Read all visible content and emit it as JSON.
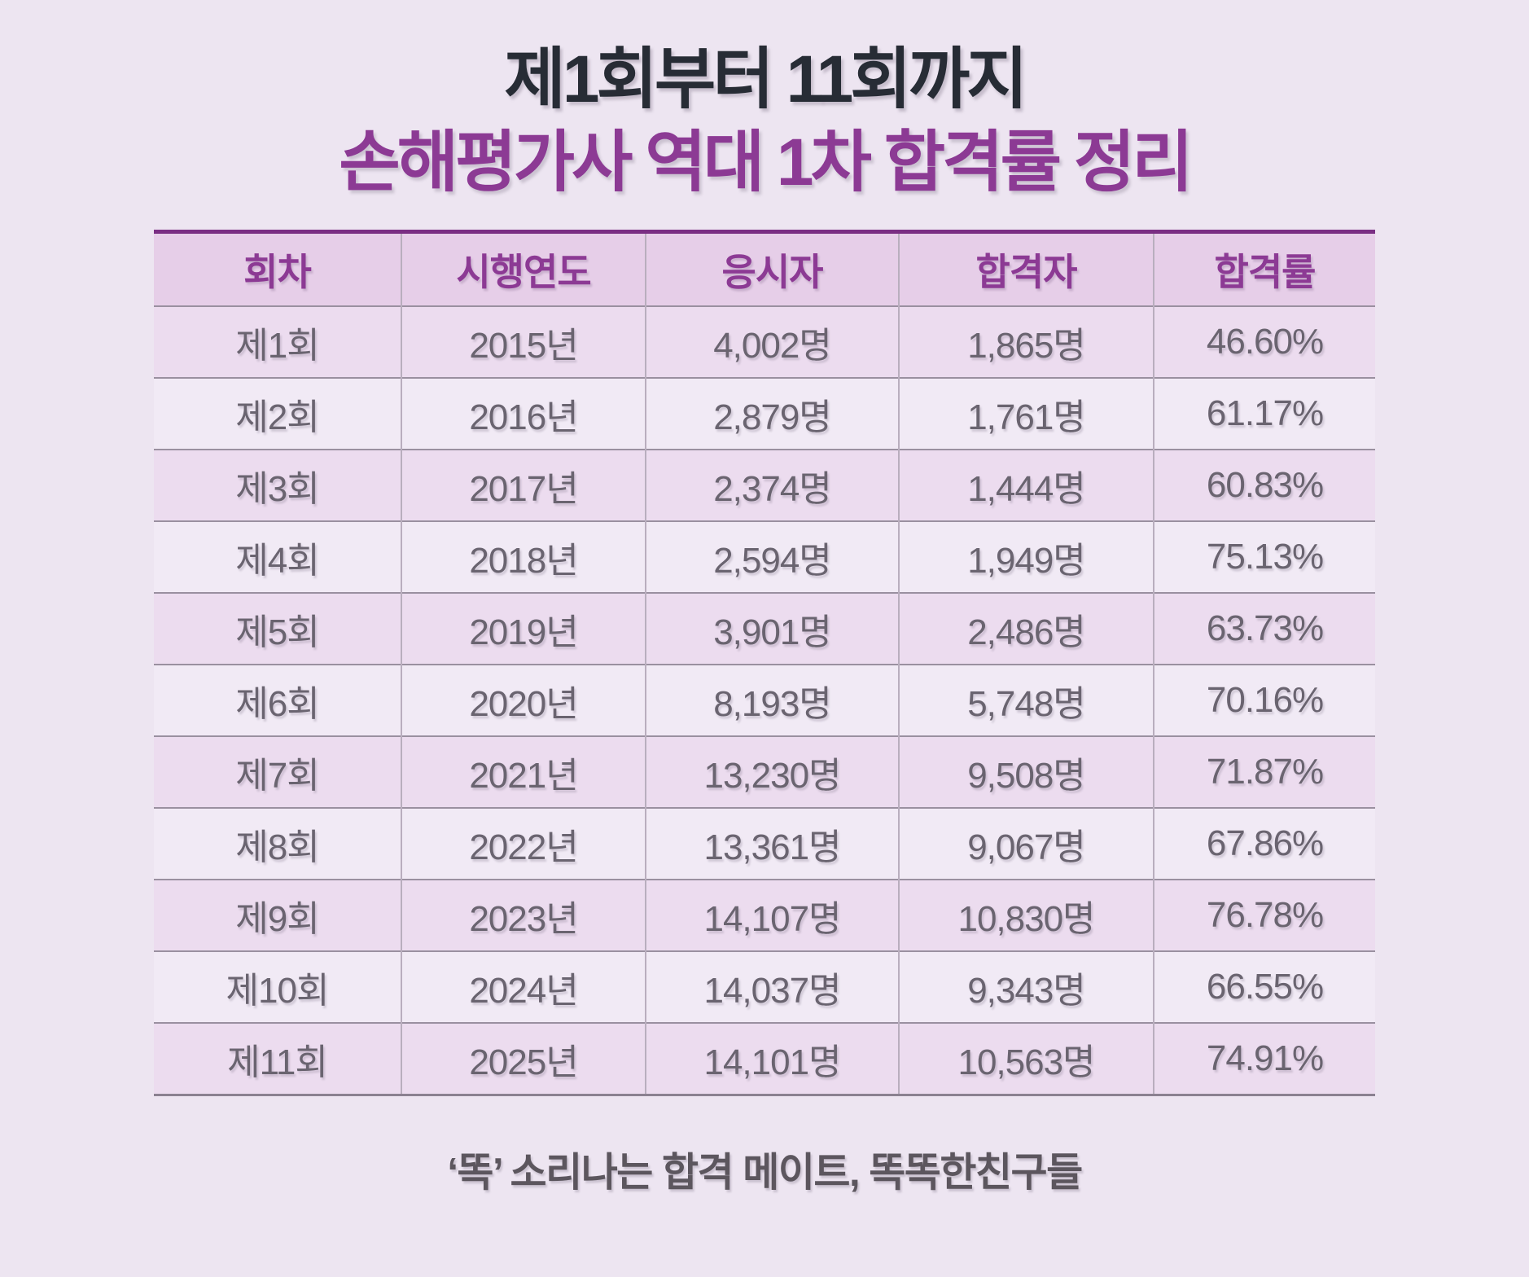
{
  "title": {
    "line1": "제1회부터 11회까지",
    "line2": "손해평가사 역대 1차 합격률 정리"
  },
  "table": {
    "headers": [
      "회차",
      "시행연도",
      "응시자",
      "합격자",
      "합격률"
    ],
    "rows": [
      [
        "제1회",
        "2015년",
        "4,002명",
        "1,865명",
        "46.60%"
      ],
      [
        "제2회",
        "2016년",
        "2,879명",
        "1,761명",
        "61.17%"
      ],
      [
        "제3회",
        "2017년",
        "2,374명",
        "1,444명",
        "60.83%"
      ],
      [
        "제4회",
        "2018년",
        "2,594명",
        "1,949명",
        "75.13%"
      ],
      [
        "제5회",
        "2019년",
        "3,901명",
        "2,486명",
        "63.73%"
      ],
      [
        "제6회",
        "2020년",
        "8,193명",
        "5,748명",
        "70.16%"
      ],
      [
        "제7회",
        "2021년",
        "13,230명",
        "9,508명",
        "71.87%"
      ],
      [
        "제8회",
        "2022년",
        "13,361명",
        "9,067명",
        "67.86%"
      ],
      [
        "제9회",
        "2023년",
        "14,107명",
        "10,830명",
        "76.78%"
      ],
      [
        "제10회",
        "2024년",
        "14,037명",
        "9,343명",
        "66.55%"
      ],
      [
        "제11회",
        "2025년",
        "14,101명",
        "10,563명",
        "74.91%"
      ]
    ]
  },
  "footer": {
    "text": "‘똑’ 소리나는 합격 메이트, 똑똑한친구들"
  },
  "colors": {
    "page_background": "#EDE5F1",
    "header_background": "#E6CEE8",
    "row_odd_background": "#ECDCEF",
    "row_even_background": "#F1EAF5",
    "accent_purple": "#8C3A94",
    "top_border_purple": "#7A2E83",
    "title_dark": "#272C35",
    "cell_text": "#6A6470",
    "row_divider": "#9A90A0",
    "column_divider": "#B9AEBE",
    "bottom_border": "#8B8191",
    "footer_text": "#5C565E"
  },
  "chart_data": {
    "type": "table",
    "title": "제1회부터 11회까지 손해평가사 역대 1차 합격률 정리",
    "columns": [
      "회차",
      "시행연도",
      "응시자",
      "합격자",
      "합격률"
    ],
    "rounds": [
      1,
      2,
      3,
      4,
      5,
      6,
      7,
      8,
      9,
      10,
      11
    ],
    "years": [
      2015,
      2016,
      2017,
      2018,
      2019,
      2020,
      2021,
      2022,
      2023,
      2024,
      2025
    ],
    "applicants": [
      4002,
      2879,
      2374,
      2594,
      3901,
      8193,
      13230,
      13361,
      14107,
      14037,
      14101
    ],
    "passers": [
      1865,
      1761,
      1444,
      1949,
      2486,
      5748,
      9508,
      9067,
      10830,
      9343,
      10563
    ],
    "pass_rate_percent": [
      46.6,
      61.17,
      60.83,
      75.13,
      63.73,
      70.16,
      71.87,
      67.86,
      76.78,
      66.55,
      74.91
    ]
  }
}
